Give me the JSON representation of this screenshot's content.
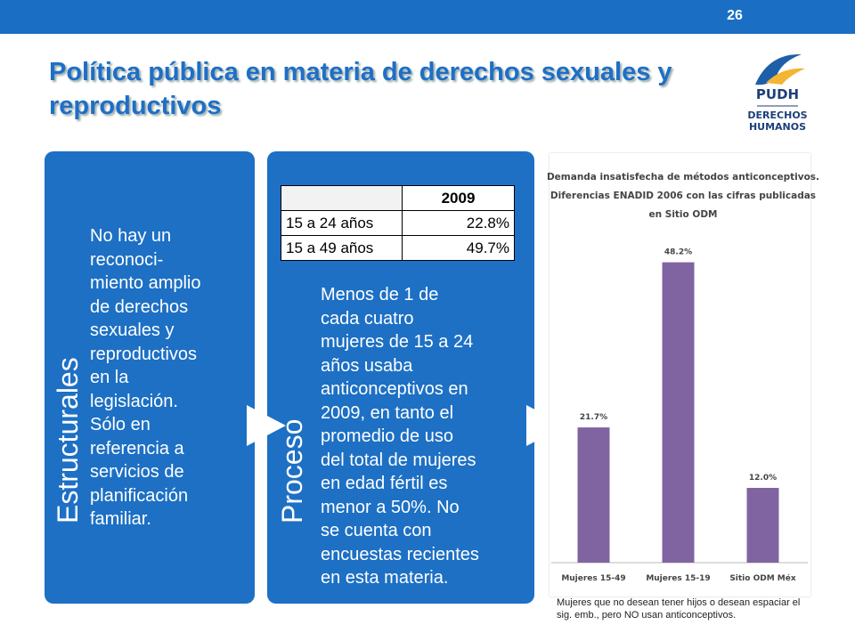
{
  "page_number": "26",
  "title": "Política pública en materia de derechos sexuales y reproductivos",
  "logo": {
    "acronym": "PUDH",
    "name_line1": "DERECHOS",
    "name_line2": "HUMANOS"
  },
  "panels": [
    {
      "label": "Estructurales",
      "lines": [
        "No hay un",
        "reconoci-",
        "miento amplio",
        "de derechos",
        "sexuales y",
        "reproductivos",
        "en la",
        "legislación.",
        "Sólo en",
        "referencia a",
        "servicios de",
        "planificación",
        "familiar."
      ]
    },
    {
      "label": "Proceso",
      "lines": [
        "Menos de 1 de",
        "cada cuatro",
        "mujeres de 15 a 24",
        "años usaba",
        "anticonceptivos en",
        "2009, en tanto el",
        "promedio de uso",
        "del total de mujeres",
        "en edad fértil es",
        "menor a 50%. No",
        "se cuenta con",
        "encuestas recientes",
        "en esta materia."
      ]
    }
  ],
  "table": {
    "header": "2009",
    "rows": [
      [
        "15 a 24 años",
        "22.8%"
      ],
      [
        "15 a 49 años",
        "49.7%"
      ]
    ]
  },
  "chart_data": {
    "type": "bar",
    "title": [
      "Demanda insatisfecha de métodos anticonceptivos.",
      "Diferencias ENADID 2006 con las cifras publicadas",
      "en Sitio ODM"
    ],
    "categories": [
      "Mujeres 15-49",
      "Mujeres 15-19",
      "Sitio ODM Méx"
    ],
    "values": [
      21.7,
      48.2,
      12.0
    ],
    "value_labels": [
      "21.7%",
      "48.2%",
      "12.0%"
    ],
    "color": "#8064a2",
    "ylim": [
      0,
      50
    ]
  },
  "caption": "Mujeres que no desean tener hijos o desean espaciar el sig. emb., pero NO usan anticonceptivos."
}
